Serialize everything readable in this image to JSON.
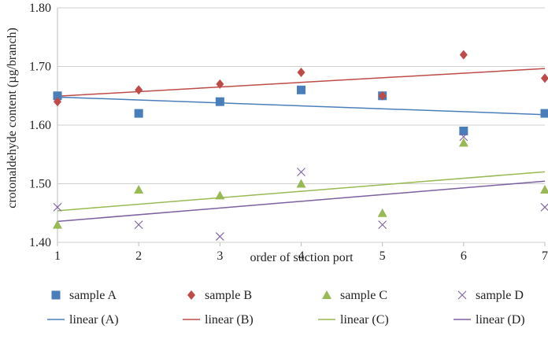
{
  "chart_data": {
    "type": "scatter",
    "xlabel": "order of suction port",
    "ylabel": "crotonaldehyde content (µg/branch)",
    "x": [
      1,
      2,
      3,
      4,
      5,
      6,
      7
    ],
    "xlim": [
      1,
      7
    ],
    "ylim": [
      1.4,
      1.8
    ],
    "xticks": [
      "1",
      "2",
      "3",
      "4",
      "5",
      "6",
      "7"
    ],
    "yticks": [
      "1.40",
      "1.50",
      "1.60",
      "1.70",
      "1.80"
    ],
    "grid": "horizontal",
    "legend_position": "bottom",
    "series": [
      {
        "name": "sample A",
        "marker": "square",
        "color": "#4a7ebb",
        "values": [
          1.65,
          1.62,
          1.64,
          1.66,
          1.65,
          1.59,
          1.62
        ]
      },
      {
        "name": "sample B",
        "marker": "diamond",
        "color": "#be4b48",
        "values": [
          1.64,
          1.66,
          1.67,
          1.69,
          1.65,
          1.72,
          1.68
        ]
      },
      {
        "name": "sample C",
        "marker": "triangle",
        "color": "#98b954",
        "values": [
          1.43,
          1.49,
          1.48,
          1.5,
          1.45,
          1.57,
          1.49
        ]
      },
      {
        "name": "sample D",
        "marker": "cross",
        "color": "#7d60a0",
        "values": [
          1.46,
          1.43,
          1.41,
          1.52,
          1.43,
          1.58,
          1.46
        ]
      }
    ],
    "trendlines": [
      {
        "name": "linear (A)",
        "of": "sample A",
        "color": "#4a7ebb"
      },
      {
        "name": "linear (B)",
        "of": "sample B",
        "color": "#be4b48"
      },
      {
        "name": "linear (C)",
        "of": "sample C",
        "color": "#98b954"
      },
      {
        "name": "linear (D)",
        "of": "sample D",
        "color": "#7d60a0"
      }
    ]
  }
}
